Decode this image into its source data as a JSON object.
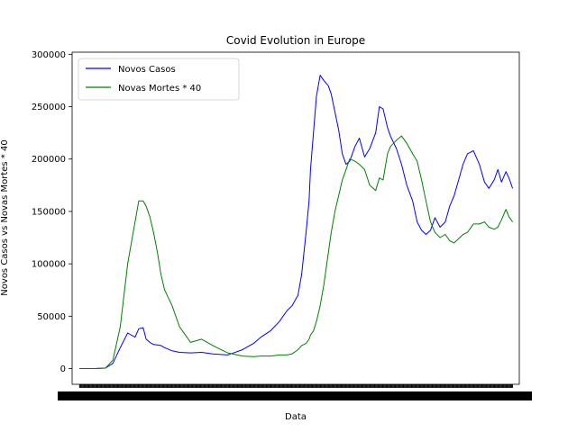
{
  "chart_data": {
    "type": "line",
    "title": "Covid Evolution in Europe",
    "xlabel": "Data",
    "ylabel": "Novos Casos vs Novas Mortes * 40",
    "ylim": [
      -15000,
      302000
    ],
    "yticks": [
      0,
      50000,
      100000,
      150000,
      200000,
      250000,
      300000
    ],
    "ytick_labels": [
      "0",
      "50000",
      "100000",
      "150000",
      "200000",
      "250000",
      "300000"
    ],
    "xlim": [
      -10,
      594
    ],
    "x_axis_note": "x axis is a dense categorical date axis (one tick per day); tick labels overlap and are unreadable",
    "grid": false,
    "legend_position": "upper-left",
    "series": [
      {
        "name": "Novos Casos",
        "color": "#0000ff",
        "x": [
          0,
          20,
          35,
          45,
          55,
          65,
          75,
          80,
          86,
          90,
          95,
          100,
          105,
          110,
          115,
          125,
          135,
          150,
          165,
          180,
          200,
          220,
          235,
          245,
          258,
          270,
          280,
          287,
          295,
          300,
          306,
          310,
          312,
          316,
          320,
          325,
          330,
          336,
          340,
          345,
          350,
          355,
          360,
          365,
          372,
          378,
          385,
          392,
          400,
          405,
          410,
          416,
          420,
          428,
          435,
          442,
          450,
          456,
          462,
          468,
          474,
          480,
          487,
          494,
          500,
          506,
          512,
          518,
          524,
          532,
          540,
          547,
          553,
          560,
          565,
          570,
          576,
          580,
          585
        ],
        "y": [
          0,
          0,
          500,
          5000,
          20000,
          34000,
          30000,
          38000,
          39000,
          28000,
          25000,
          23000,
          22500,
          22000,
          20000,
          17000,
          15500,
          15000,
          15500,
          14000,
          13000,
          18000,
          24000,
          30000,
          36000,
          45000,
          55000,
          60000,
          70000,
          90000,
          130000,
          160000,
          190000,
          225000,
          260000,
          280000,
          275000,
          270000,
          262000,
          245000,
          228000,
          205000,
          195000,
          198000,
          212000,
          220000,
          202000,
          210000,
          225000,
          250000,
          248000,
          230000,
          222000,
          210000,
          195000,
          175000,
          160000,
          140000,
          132000,
          128000,
          132000,
          144000,
          135000,
          140000,
          155000,
          165000,
          180000,
          195000,
          205000,
          208000,
          195000,
          178000,
          172000,
          180000,
          190000,
          178000,
          188000,
          182000,
          172000
        ]
      },
      {
        "name": "Novas Mortes * 40",
        "color": "#008000",
        "x": [
          0,
          20,
          35,
          45,
          55,
          65,
          75,
          80,
          86,
          90,
          95,
          100,
          105,
          110,
          115,
          125,
          135,
          150,
          165,
          180,
          200,
          220,
          235,
          245,
          258,
          270,
          280,
          287,
          295,
          300,
          306,
          310,
          312,
          316,
          320,
          325,
          330,
          336,
          340,
          345,
          350,
          355,
          360,
          365,
          372,
          378,
          385,
          392,
          400,
          405,
          410,
          416,
          420,
          428,
          435,
          442,
          450,
          456,
          462,
          468,
          474,
          480,
          487,
          494,
          500,
          506,
          512,
          518,
          524,
          532,
          540,
          547,
          553,
          560,
          565,
          570,
          576,
          580,
          585
        ],
        "y": [
          0,
          0,
          500,
          8000,
          40000,
          100000,
          140000,
          160000,
          160000,
          155000,
          145000,
          130000,
          112000,
          90000,
          75000,
          60000,
          40000,
          25000,
          28000,
          22000,
          15000,
          12000,
          11500,
          12000,
          12000,
          13000,
          13000,
          14000,
          18000,
          22000,
          24000,
          28000,
          32000,
          36000,
          45000,
          60000,
          80000,
          110000,
          130000,
          150000,
          165000,
          180000,
          190000,
          200000,
          198000,
          195000,
          190000,
          175000,
          170000,
          182000,
          180000,
          205000,
          212000,
          218000,
          222000,
          215000,
          205000,
          198000,
          180000,
          160000,
          140000,
          130000,
          125000,
          128000,
          122000,
          120000,
          124000,
          128000,
          130000,
          138000,
          138000,
          140000,
          135000,
          133000,
          135000,
          142000,
          152000,
          145000,
          140000
        ]
      }
    ]
  }
}
